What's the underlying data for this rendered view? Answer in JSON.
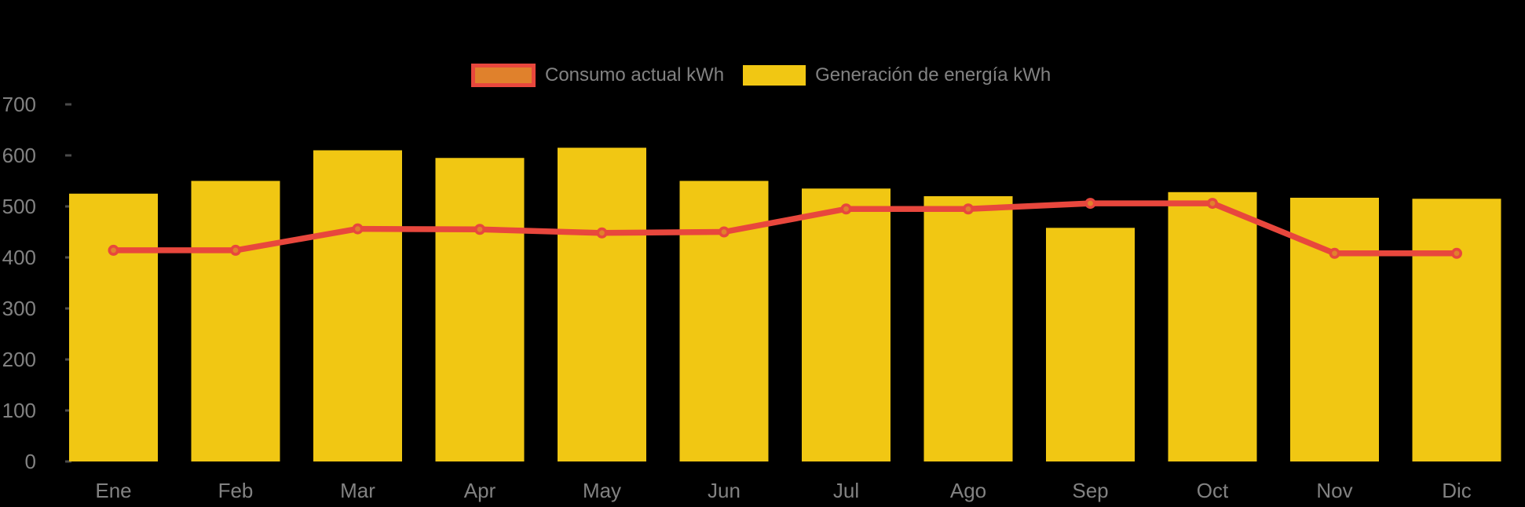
{
  "background": "#000000",
  "legend": {
    "text_color": "#828282",
    "items": [
      {
        "label": "Consumo actual kWh",
        "type": "line",
        "swatch_fill": "#e0812c",
        "swatch_border": "#e8473d"
      },
      {
        "label": "Generación de energía kWh",
        "type": "bar",
        "swatch_fill": "#f1c713",
        "swatch_border": ""
      }
    ]
  },
  "chart_data": {
    "type": "combo",
    "title": "",
    "xlabel": "",
    "ylabel": "",
    "categories": [
      "Ene",
      "Feb",
      "Mar",
      "Apr",
      "May",
      "Jun",
      "Jul",
      "Ago",
      "Sep",
      "Oct",
      "Nov",
      "Dic"
    ],
    "series": [
      {
        "name": "Generación de energía kWh",
        "type": "bar",
        "color": "#f1c713",
        "values": [
          525,
          550,
          610,
          595,
          615,
          550,
          535,
          520,
          458,
          528,
          517,
          515
        ]
      },
      {
        "name": "Consumo actual kWh",
        "type": "line",
        "color": "#e8473d",
        "marker_color": "#e0812c",
        "values": [
          414,
          414,
          456,
          455,
          448,
          450,
          495,
          495,
          506,
          506,
          408,
          408
        ]
      }
    ],
    "ylim": [
      0,
      700
    ],
    "yticks": [
      0,
      100,
      200,
      300,
      400,
      500,
      600,
      700
    ],
    "grid": false,
    "legend_position": "top",
    "axis_text_color": "#828282",
    "tick_mark_color": "#4a4a4a"
  }
}
